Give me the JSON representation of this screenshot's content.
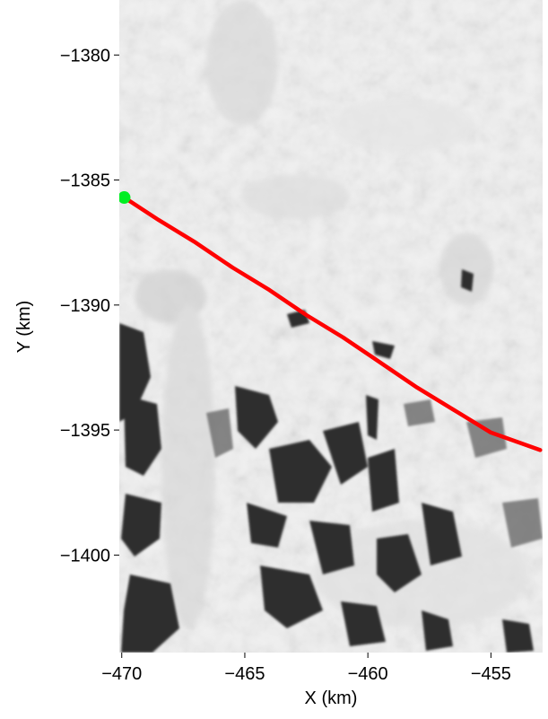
{
  "chart_data": {
    "type": "line",
    "xlabel": "X (km)",
    "ylabel": "Y (km)",
    "xlim": [
      -470.1,
      -452.9
    ],
    "ylim": [
      -1403.9,
      -1377.8
    ],
    "x_ticks": [
      {
        "value": -470,
        "label": "−470"
      },
      {
        "value": -465,
        "label": "−465"
      },
      {
        "value": -460,
        "label": "−460"
      },
      {
        "value": -455,
        "label": "−455"
      }
    ],
    "y_ticks": [
      {
        "value": -1380,
        "label": "−1380"
      },
      {
        "value": -1385,
        "label": "−1385"
      },
      {
        "value": -1390,
        "label": "−1390"
      },
      {
        "value": -1395,
        "label": "−1395"
      },
      {
        "value": -1400,
        "label": "−1400"
      }
    ],
    "grid": false,
    "background": "grayscale satellite image of ice sheet and exposed rock",
    "series": [
      {
        "color": "#ff0000",
        "x": [
          -469.9,
          -468.5,
          -467.0,
          -465.5,
          -464.0,
          -462.5,
          -461.0,
          -459.8,
          -458.0,
          -456.5,
          -455.0,
          -453.0
        ],
        "y": [
          -1385.7,
          -1386.6,
          -1387.5,
          -1388.5,
          -1389.4,
          -1390.4,
          -1391.3,
          -1392.1,
          -1393.3,
          -1394.2,
          -1395.1,
          -1395.8
        ]
      }
    ],
    "start_marker": {
      "x": -469.9,
      "y": -1385.7,
      "color": "#00ee22"
    }
  }
}
